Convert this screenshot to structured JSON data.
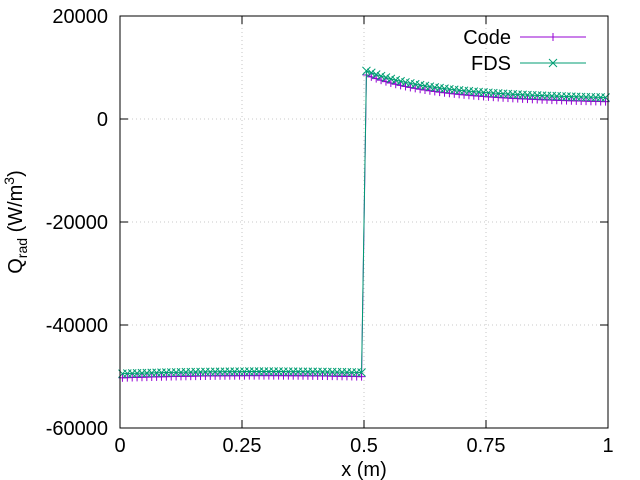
{
  "chart_data": {
    "type": "line",
    "xlabel": "x (m)",
    "ylabel": {
      "base": "Q",
      "sub": "rad",
      "unit_prefix": " (W/m",
      "sup": "3",
      "unit_suffix": ")"
    },
    "xlim": [
      0,
      1
    ],
    "ylim": [
      -60000,
      20000
    ],
    "xticks": [
      {
        "value": 0,
        "label": "0"
      },
      {
        "value": 0.25,
        "label": "0.25"
      },
      {
        "value": 0.5,
        "label": "0.5"
      },
      {
        "value": 0.75,
        "label": "0.75"
      },
      {
        "value": 1,
        "label": "1"
      }
    ],
    "yticks": [
      {
        "value": -60000,
        "label": "-60000"
      },
      {
        "value": -40000,
        "label": "-40000"
      },
      {
        "value": -20000,
        "label": "-20000"
      },
      {
        "value": 0,
        "label": "0"
      },
      {
        "value": 20000,
        "label": "20000"
      }
    ],
    "grid": true,
    "legend_position": "top-right",
    "series": [
      {
        "name": "Code",
        "color": "#9400d3",
        "marker": "plus",
        "x": [
          0.005,
          0.015,
          0.025,
          0.035,
          0.045,
          0.055,
          0.065,
          0.075,
          0.085,
          0.095,
          0.105,
          0.115,
          0.125,
          0.135,
          0.145,
          0.155,
          0.165,
          0.175,
          0.185,
          0.195,
          0.205,
          0.215,
          0.225,
          0.235,
          0.245,
          0.255,
          0.265,
          0.275,
          0.285,
          0.295,
          0.305,
          0.315,
          0.325,
          0.335,
          0.345,
          0.355,
          0.365,
          0.375,
          0.385,
          0.395,
          0.405,
          0.415,
          0.425,
          0.435,
          0.445,
          0.455,
          0.465,
          0.475,
          0.485,
          0.495,
          0.505,
          0.515,
          0.525,
          0.535,
          0.545,
          0.555,
          0.565,
          0.575,
          0.585,
          0.595,
          0.605,
          0.615,
          0.625,
          0.635,
          0.645,
          0.655,
          0.665,
          0.675,
          0.685,
          0.695,
          0.705,
          0.715,
          0.725,
          0.735,
          0.745,
          0.755,
          0.765,
          0.775,
          0.785,
          0.795,
          0.805,
          0.815,
          0.825,
          0.835,
          0.845,
          0.855,
          0.865,
          0.875,
          0.885,
          0.895,
          0.905,
          0.915,
          0.925,
          0.935,
          0.945,
          0.955,
          0.965,
          0.975,
          0.985,
          0.995
        ],
        "y": [
          -50250,
          -50222,
          -50194,
          -50168,
          -50142,
          -50118,
          -50094,
          -50072,
          -50050,
          -50030,
          -50010,
          -49992,
          -49974,
          -49958,
          -49942,
          -49928,
          -49914,
          -49902,
          -49890,
          -49880,
          -49870,
          -49862,
          -49854,
          -49848,
          -49842,
          -49838,
          -49834,
          -49832,
          -49830,
          -49830,
          -49830,
          -49832,
          -49834,
          -49838,
          -49842,
          -49848,
          -49854,
          -49862,
          -49870,
          -49880,
          -49890,
          -49902,
          -49914,
          -49928,
          -49942,
          -49958,
          -49974,
          -49992,
          -50010,
          -50030,
          8550,
          8182,
          7845,
          7537,
          7253,
          6992,
          6750,
          6527,
          6320,
          6128,
          5949,
          5783,
          5628,
          5483,
          5348,
          5221,
          5102,
          4991,
          4886,
          4788,
          4695,
          4608,
          4526,
          4448,
          4375,
          4306,
          4240,
          4178,
          4119,
          4063,
          4010,
          3960,
          3912,
          3866,
          3823,
          3782,
          3743,
          3705,
          3670,
          3636,
          3604,
          3573,
          3543,
          3515,
          3488,
          3463,
          3438,
          3415,
          3392,
          3371
        ]
      },
      {
        "name": "FDS",
        "color": "#009e73",
        "marker": "cross",
        "x": [
          0.005,
          0.015,
          0.025,
          0.035,
          0.045,
          0.055,
          0.065,
          0.075,
          0.085,
          0.095,
          0.105,
          0.115,
          0.125,
          0.135,
          0.145,
          0.155,
          0.165,
          0.175,
          0.185,
          0.195,
          0.205,
          0.215,
          0.225,
          0.235,
          0.245,
          0.255,
          0.265,
          0.275,
          0.285,
          0.295,
          0.305,
          0.315,
          0.325,
          0.335,
          0.345,
          0.355,
          0.365,
          0.375,
          0.385,
          0.395,
          0.405,
          0.415,
          0.425,
          0.435,
          0.445,
          0.455,
          0.465,
          0.475,
          0.485,
          0.495,
          0.505,
          0.515,
          0.525,
          0.535,
          0.545,
          0.555,
          0.565,
          0.575,
          0.585,
          0.595,
          0.605,
          0.615,
          0.625,
          0.635,
          0.645,
          0.655,
          0.665,
          0.675,
          0.685,
          0.695,
          0.705,
          0.715,
          0.725,
          0.735,
          0.745,
          0.755,
          0.765,
          0.775,
          0.785,
          0.795,
          0.805,
          0.815,
          0.825,
          0.835,
          0.845,
          0.855,
          0.865,
          0.875,
          0.885,
          0.895,
          0.905,
          0.915,
          0.925,
          0.935,
          0.945,
          0.955,
          0.965,
          0.975,
          0.985,
          0.995
        ],
        "y": [
          -49450,
          -49422,
          -49394,
          -49368,
          -49342,
          -49318,
          -49294,
          -49272,
          -49250,
          -49230,
          -49210,
          -49192,
          -49174,
          -49158,
          -49142,
          -49128,
          -49114,
          -49102,
          -49090,
          -49080,
          -49070,
          -49062,
          -49054,
          -49048,
          -49042,
          -49038,
          -49034,
          -49032,
          -49030,
          -49030,
          -49030,
          -49032,
          -49034,
          -49038,
          -49042,
          -49048,
          -49054,
          -49062,
          -49070,
          -49080,
          -49090,
          -49102,
          -49114,
          -49128,
          -49142,
          -49158,
          -49174,
          -49192,
          -49210,
          -49230,
          9350,
          8982,
          8645,
          8337,
          8053,
          7792,
          7550,
          7327,
          7120,
          6928,
          6749,
          6583,
          6428,
          6283,
          6148,
          6021,
          5902,
          5791,
          5686,
          5588,
          5495,
          5408,
          5326,
          5248,
          5175,
          5106,
          5040,
          4978,
          4919,
          4863,
          4810,
          4760,
          4712,
          4666,
          4623,
          4582,
          4543,
          4505,
          4470,
          4436,
          4404,
          4373,
          4343,
          4315,
          4288,
          4263,
          4238,
          4215,
          4192,
          4171
        ]
      }
    ]
  }
}
